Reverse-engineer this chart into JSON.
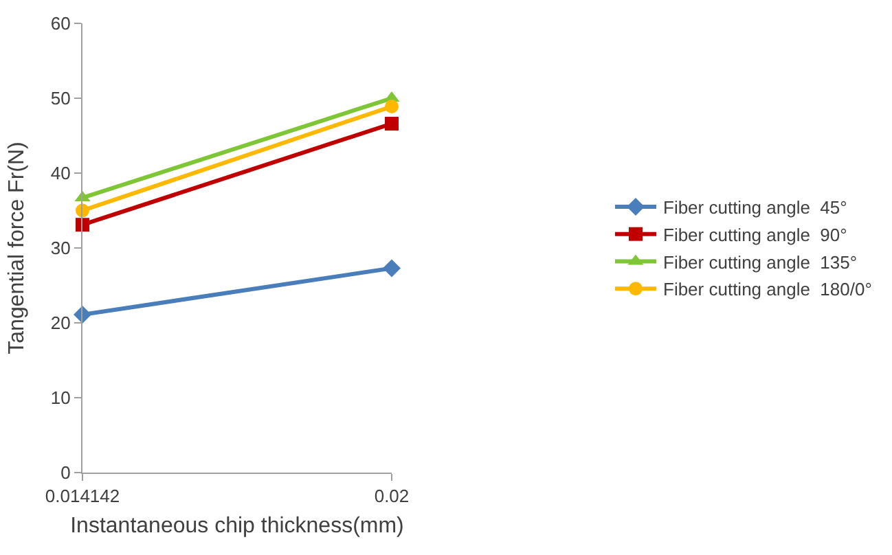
{
  "chart_data": {
    "type": "line",
    "xlabel": "Instantaneous chip thickness(mm)",
    "ylabel": "Tangential force Fr(N)",
    "categories": [
      "0.014142",
      "0.02"
    ],
    "ylim": [
      0,
      60
    ],
    "yticks": [
      0,
      10,
      20,
      30,
      40,
      50,
      60
    ],
    "legend": "right",
    "line_style": "solid",
    "series": [
      {
        "name": "Fiber cutting angle  45°",
        "color": "#4a7ebb",
        "marker": "diamond",
        "values": [
          21.1,
          27.3
        ]
      },
      {
        "name": "Fiber cutting angle  90°",
        "color": "#c00000",
        "marker": "square",
        "values": [
          33.1,
          46.6
        ]
      },
      {
        "name": "Fiber cutting angle  135°",
        "color": "#7ec636",
        "marker": "triangle",
        "values": [
          36.7,
          50.0
        ]
      },
      {
        "name": "Fiber cutting angle  180/0°",
        "color": "#ffb800",
        "marker": "circle",
        "values": [
          35.0,
          48.9
        ]
      }
    ]
  }
}
